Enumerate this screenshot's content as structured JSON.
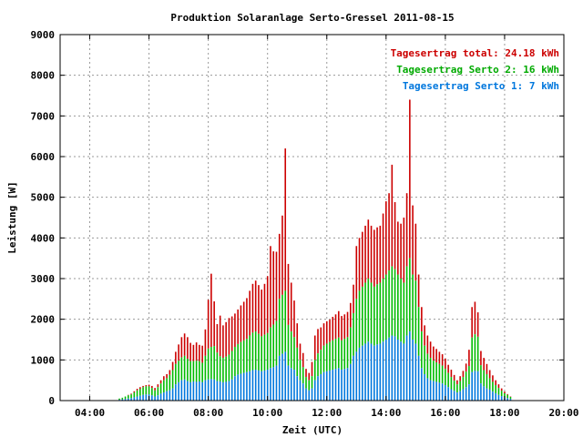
{
  "chart_data": {
    "type": "bar",
    "title": "Produktion Solaranlage Serto-Gressel 2011-08-15",
    "xlabel": "Zeit (UTC)",
    "ylabel": "Leistung [W]",
    "xlim": [
      3.0,
      20.0
    ],
    "ylim": [
      0,
      9000
    ],
    "x_ticks": [
      "04:00",
      "06:00",
      "08:00",
      "10:00",
      "12:00",
      "14:00",
      "16:00",
      "18:00",
      "20:00"
    ],
    "y_ticks": [
      "0",
      "1000",
      "2000",
      "3000",
      "4000",
      "5000",
      "6000",
      "7000",
      "8000",
      "9000"
    ],
    "grid": true,
    "stacked": true,
    "legend_position": "top-right",
    "legend": [
      {
        "text": "Tagesertrag total: 24.18 kWh",
        "color": "#cc0000"
      },
      {
        "text": "Tagesertrag Serto 2: 16 kWh",
        "color": "#00aa00"
      },
      {
        "text": "Tagesertrag Serto 1: 7 kWh",
        "color": "#0077dd"
      }
    ],
    "colors": {
      "total": "#cc0000",
      "serto2": "#00bb00",
      "serto1": "#0077dd"
    },
    "x_hours": [
      5.0,
      5.1,
      5.2,
      5.3,
      5.4,
      5.5,
      5.6,
      5.7,
      5.8,
      5.9,
      6.0,
      6.1,
      6.2,
      6.3,
      6.4,
      6.5,
      6.6,
      6.7,
      6.8,
      6.9,
      7.0,
      7.1,
      7.2,
      7.3,
      7.4,
      7.5,
      7.6,
      7.7,
      7.8,
      7.9,
      8.0,
      8.1,
      8.2,
      8.3,
      8.4,
      8.5,
      8.6,
      8.7,
      8.8,
      8.9,
      9.0,
      9.1,
      9.2,
      9.3,
      9.4,
      9.5,
      9.6,
      9.7,
      9.8,
      9.9,
      10.0,
      10.1,
      10.2,
      10.3,
      10.4,
      10.5,
      10.6,
      10.7,
      10.8,
      10.9,
      11.0,
      11.1,
      11.2,
      11.3,
      11.4,
      11.5,
      11.6,
      11.7,
      11.8,
      11.9,
      12.0,
      12.1,
      12.2,
      12.3,
      12.4,
      12.5,
      12.6,
      12.7,
      12.8,
      12.9,
      13.0,
      13.1,
      13.2,
      13.3,
      13.4,
      13.5,
      13.6,
      13.7,
      13.8,
      13.9,
      14.0,
      14.1,
      14.2,
      14.3,
      14.4,
      14.5,
      14.6,
      14.7,
      14.8,
      14.9,
      15.0,
      15.1,
      15.2,
      15.3,
      15.4,
      15.5,
      15.6,
      15.7,
      15.8,
      15.9,
      16.0,
      16.1,
      16.2,
      16.3,
      16.4,
      16.5,
      16.6,
      16.7,
      16.8,
      16.9,
      17.0,
      17.1,
      17.2,
      17.3,
      17.4,
      17.5,
      17.6,
      17.7,
      17.8,
      17.9,
      18.0,
      18.1,
      18.2
    ],
    "serto1": [
      20,
      30,
      40,
      50,
      60,
      80,
      100,
      120,
      140,
      150,
      150,
      130,
      100,
      130,
      170,
      200,
      230,
      250,
      300,
      400,
      450,
      500,
      520,
      480,
      450,
      470,
      460,
      470,
      450,
      500,
      520,
      530,
      520,
      480,
      470,
      450,
      460,
      480,
      520,
      600,
      640,
      660,
      680,
      700,
      720,
      750,
      760,
      740,
      720,
      740,
      760,
      800,
      820,
      860,
      1100,
      1150,
      1200,
      860,
      800,
      760,
      600,
      500,
      420,
      300,
      250,
      300,
      500,
      600,
      650,
      700,
      720,
      740,
      760,
      780,
      800,
      760,
      780,
      800,
      900,
      1100,
      1200,
      1300,
      1350,
      1400,
      1450,
      1400,
      1350,
      1380,
      1400,
      1450,
      1500,
      1550,
      1600,
      1580,
      1500,
      1450,
      1400,
      1600,
      1700,
      1500,
      1400,
      1100,
      800,
      650,
      550,
      500,
      480,
      460,
      440,
      420,
      380,
      330,
      280,
      240,
      200,
      230,
      280,
      330,
      400,
      700,
      730,
      720,
      420,
      350,
      300,
      270,
      220,
      180,
      140,
      110,
      80,
      60,
      40,
      25,
      10
    ],
    "serto2": [
      30,
      40,
      60,
      80,
      90,
      120,
      150,
      170,
      190,
      200,
      200,
      180,
      150,
      200,
      250,
      300,
      320,
      380,
      450,
      500,
      530,
      560,
      580,
      550,
      520,
      500,
      520,
      500,
      480,
      600,
      760,
      790,
      820,
      700,
      620,
      600,
      620,
      650,
      700,
      720,
      750,
      780,
      800,
      820,
      880,
      920,
      940,
      900,
      860,
      880,
      900,
      1000,
      1050,
      1100,
      1400,
      1450,
      1500,
      1000,
      900,
      800,
      700,
      500,
      400,
      280,
      250,
      300,
      500,
      560,
      600,
      650,
      680,
      700,
      720,
      740,
      750,
      720,
      740,
      760,
      900,
      1050,
      1300,
      1400,
      1450,
      1500,
      1550,
      1500,
      1450,
      1480,
      1500,
      1550,
      1600,
      1650,
      1700,
      1650,
      1600,
      1550,
      1500,
      1700,
      1800,
      1600,
      1550,
      1200,
      900,
      700,
      600,
      550,
      500,
      480,
      460,
      440,
      400,
      350,
      300,
      250,
      200,
      250,
      300,
      380,
      450,
      850,
      900,
      850,
      450,
      400,
      350,
      280,
      240,
      200,
      170,
      130,
      100,
      80,
      50,
      30,
      10
    ],
    "extra": [
      0,
      0,
      0,
      10,
      20,
      30,
      40,
      40,
      30,
      30,
      40,
      50,
      60,
      70,
      80,
      100,
      100,
      120,
      200,
      300,
      400,
      500,
      550,
      530,
      450,
      400,
      450,
      400,
      420,
      650,
      1200,
      1800,
      1100,
      700,
      1000,
      800,
      850,
      900,
      850,
      820,
      850,
      900,
      950,
      1000,
      1100,
      1200,
      1250,
      1200,
      1150,
      1250,
      1400,
      2000,
      1800,
      1700,
      1600,
      1950,
      3500,
      1500,
      1200,
      900,
      600,
      400,
      350,
      200,
      180,
      350,
      600,
      600,
      550,
      550,
      550,
      550,
      580,
      600,
      650,
      600,
      600,
      620,
      600,
      700,
      1300,
      1300,
      1350,
      1400,
      1450,
      1400,
      1400,
      1400,
      1400,
      1600,
      1800,
      1900,
      2500,
      1650,
      1300,
      1350,
      1600,
      1800,
      3900,
      1700,
      1400,
      800,
      600,
      500,
      450,
      400,
      350,
      330,
      300,
      280,
      250,
      200,
      180,
      140,
      100,
      120,
      150,
      200,
      400,
      750,
      800,
      600,
      350,
      300,
      250,
      200,
      160,
      120,
      90,
      60,
      40,
      20,
      10,
      5,
      0
    ]
  }
}
